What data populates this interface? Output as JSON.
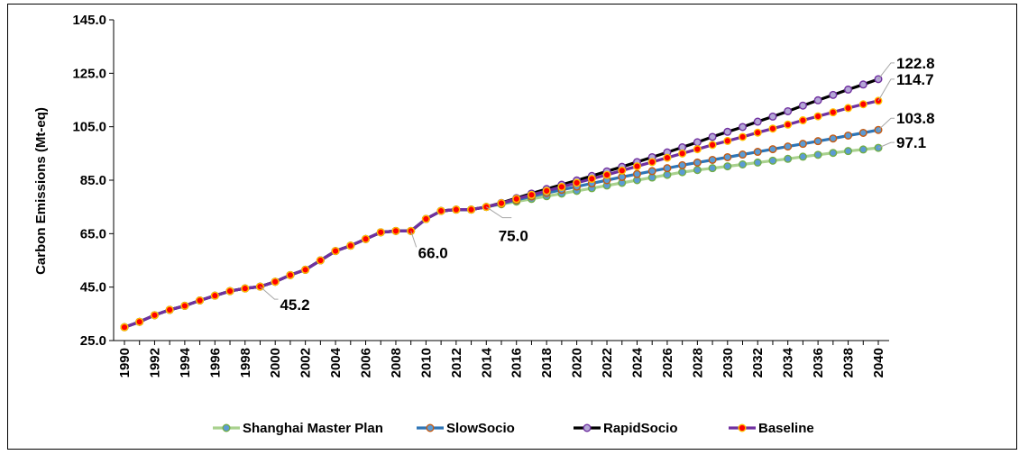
{
  "chart_data": {
    "type": "line",
    "title": "",
    "xlabel": "",
    "ylabel": "Carbon Emissions (Mt-eq)",
    "ylim": [
      25,
      145
    ],
    "yticks": [
      "25.0",
      "45.0",
      "65.0",
      "85.0",
      "105.0",
      "125.0",
      "145.0"
    ],
    "grid": false,
    "legend_position": "bottom",
    "x": [
      1990,
      1991,
      1992,
      1993,
      1994,
      1995,
      1996,
      1997,
      1998,
      1999,
      2000,
      2001,
      2002,
      2003,
      2004,
      2005,
      2006,
      2007,
      2008,
      2009,
      2010,
      2011,
      2012,
      2013,
      2014,
      2015,
      2016,
      2017,
      2018,
      2019,
      2020,
      2021,
      2022,
      2023,
      2024,
      2025,
      2026,
      2027,
      2028,
      2029,
      2030,
      2031,
      2032,
      2033,
      2034,
      2035,
      2036,
      2037,
      2038,
      2039,
      2040
    ],
    "xticks": [
      "1990",
      "1992",
      "1994",
      "1996",
      "1998",
      "2000",
      "2002",
      "2004",
      "2006",
      "2008",
      "2010",
      "2012",
      "2014",
      "2016",
      "2018",
      "2020",
      "2022",
      "2024",
      "2026",
      "2028",
      "2030",
      "2032",
      "2034",
      "2036",
      "2038",
      "2040"
    ],
    "series": [
      {
        "name": "Shanghai Master Plan",
        "line_color": "#a9d18e",
        "marker_color": "#5b9bd5",
        "marker_edge": "#70ad47",
        "values": [
          30.0,
          32.0,
          34.5,
          36.5,
          38.0,
          40.0,
          41.8,
          43.5,
          44.5,
          45.2,
          47.0,
          49.5,
          51.5,
          55.0,
          58.5,
          60.5,
          63.0,
          65.5,
          66.0,
          66.0,
          70.5,
          73.5,
          74.0,
          74.0,
          75.0,
          76.0,
          77.0,
          78.0,
          79.0,
          80.0,
          81.0,
          82.0,
          83.0,
          84.0,
          85.0,
          86.0,
          87.0,
          88.0,
          88.8,
          89.5,
          90.2,
          90.9,
          91.6,
          92.3,
          93.0,
          93.8,
          94.5,
          95.2,
          95.9,
          96.5,
          97.1
        ]
      },
      {
        "name": "SlowSocio",
        "line_color": "#2e75b6",
        "marker_color": "#5b9bd5",
        "marker_edge": "#c55a11",
        "values": [
          30.0,
          32.0,
          34.5,
          36.5,
          38.0,
          40.0,
          41.8,
          43.5,
          44.5,
          45.2,
          47.0,
          49.5,
          51.5,
          55.0,
          58.5,
          60.5,
          63.0,
          65.5,
          66.0,
          66.0,
          70.5,
          73.5,
          74.0,
          74.0,
          75.0,
          76.2,
          77.6,
          78.9,
          80.2,
          81.4,
          82.6,
          83.8,
          85.0,
          86.2,
          87.3,
          88.4,
          89.5,
          90.6,
          91.6,
          92.6,
          93.6,
          94.6,
          95.6,
          96.6,
          97.6,
          98.6,
          99.6,
          100.6,
          101.7,
          102.7,
          103.8
        ]
      },
      {
        "name": "RapidSocio",
        "line_color": "#000000",
        "marker_color": "#b4a7d6",
        "marker_edge": "#7030a0",
        "values": [
          30.0,
          32.0,
          34.5,
          36.5,
          38.0,
          40.0,
          41.8,
          43.5,
          44.5,
          45.2,
          47.0,
          49.5,
          51.5,
          55.0,
          58.5,
          60.5,
          63.0,
          65.5,
          66.0,
          66.0,
          70.5,
          73.5,
          74.0,
          74.0,
          75.0,
          76.5,
          78.3,
          80.0,
          81.7,
          83.3,
          84.9,
          86.6,
          88.3,
          90.0,
          91.8,
          93.6,
          95.4,
          97.3,
          99.2,
          101.2,
          103.1,
          104.9,
          106.9,
          108.8,
          110.8,
          112.9,
          114.9,
          116.9,
          118.9,
          120.8,
          122.8
        ]
      },
      {
        "name": "Baseline",
        "line_color": "#7030a0",
        "marker_color": "#ff0000",
        "marker_edge": "#ffc000",
        "values": [
          30.0,
          32.0,
          34.5,
          36.5,
          38.0,
          40.0,
          41.8,
          43.5,
          44.5,
          45.2,
          47.0,
          49.5,
          51.5,
          55.0,
          58.5,
          60.5,
          63.0,
          65.5,
          66.0,
          66.0,
          70.5,
          73.5,
          74.0,
          74.0,
          75.0,
          76.4,
          78.0,
          79.5,
          81.0,
          82.5,
          84.0,
          85.5,
          87.0,
          88.6,
          90.2,
          91.8,
          93.4,
          95.0,
          96.6,
          98.2,
          99.7,
          101.2,
          102.8,
          104.3,
          105.8,
          107.4,
          108.9,
          110.4,
          112.0,
          113.4,
          114.7
        ]
      }
    ],
    "annotations": [
      {
        "text": "45.2",
        "x": 1999,
        "y": 45.2
      },
      {
        "text": "66.0",
        "x": 2009,
        "y": 66.0
      },
      {
        "text": "75.0",
        "x": 2014,
        "y": 75.0
      },
      {
        "text": "122.8",
        "x": 2040,
        "y": 122.8
      },
      {
        "text": "114.7",
        "x": 2040,
        "y": 114.7
      },
      {
        "text": "103.8",
        "x": 2040,
        "y": 103.8
      },
      {
        "text": "97.1",
        "x": 2040,
        "y": 97.1
      }
    ]
  }
}
